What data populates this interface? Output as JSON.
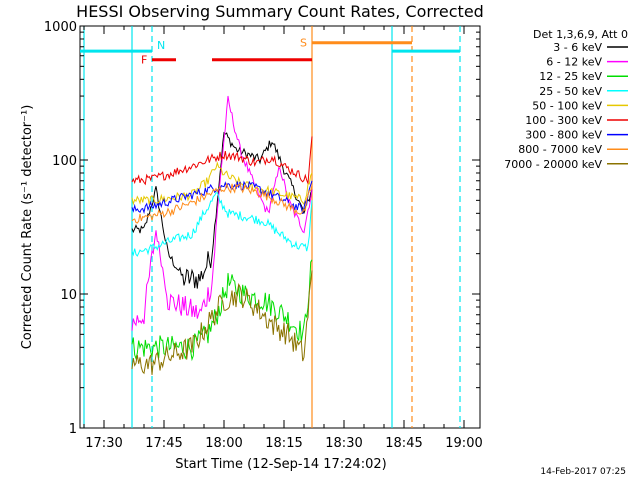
{
  "title": "HESSI Observing Summary Count Rates, Corrected",
  "ylabel": "Corrected Count Rate (s⁻¹ detector⁻¹)",
  "xlabel": "Start Time (12-Sep-14 17:24:02)",
  "timestamp": "14-Feb-2017 07:25",
  "legend_header": "Det 1,3,6,9, Att 0",
  "legend": [
    {
      "label": "3 - 6 keV",
      "color": "#000000"
    },
    {
      "label": "6 - 12 keV",
      "color": "#ff00ff"
    },
    {
      "label": "12 - 25 keV",
      "color": "#00dd00"
    },
    {
      "label": "25 - 50 keV",
      "color": "#00ffff"
    },
    {
      "label": "50 - 100 keV",
      "color": "#e6c800"
    },
    {
      "label": "100 - 300 keV",
      "color": "#ee0000"
    },
    {
      "label": "300 - 800 keV",
      "color": "#0000ff"
    },
    {
      "label": "800 - 7000 keV",
      "color": "#ff8c1a"
    },
    {
      "label": "7000 - 20000 keV",
      "color": "#8b7300"
    }
  ],
  "chart_data": {
    "type": "line",
    "yscale": "log",
    "ylim": [
      1,
      1000
    ],
    "xlim": [
      "17:24",
      "19:04"
    ],
    "x_ticks": [
      "17:30",
      "17:45",
      "18:00",
      "18:15",
      "18:30",
      "18:45",
      "19:00"
    ],
    "y_ticks": [
      "1",
      "10",
      "100",
      "1000"
    ],
    "series": [
      {
        "label_ref": 0,
        "color": "#000000",
        "x": [
          "17:37",
          "17:40",
          "17:43",
          "17:46",
          "17:50",
          "17:54",
          "17:57",
          "18:00",
          "18:03",
          "18:06",
          "18:09",
          "18:12",
          "18:15",
          "18:18",
          "18:20",
          "18:22"
        ],
        "y": [
          30,
          30,
          60,
          20,
          13,
          13,
          20,
          160,
          120,
          110,
          100,
          140,
          85,
          55,
          40,
          60
        ]
      },
      {
        "label_ref": 1,
        "color": "#ff00ff",
        "x": [
          "17:37",
          "17:40",
          "17:43",
          "17:46",
          "17:50",
          "17:54",
          "17:57",
          "17:59",
          "18:01",
          "18:04",
          "18:08",
          "18:11",
          "18:14",
          "18:16",
          "18:18",
          "18:20",
          "18:22"
        ],
        "y": [
          6,
          7,
          30,
          9,
          8,
          7,
          12,
          70,
          280,
          120,
          60,
          40,
          90,
          50,
          38,
          30,
          60
        ]
      },
      {
        "label_ref": 2,
        "color": "#00dd00",
        "x": [
          "17:37",
          "17:42",
          "17:47",
          "17:52",
          "17:56",
          "17:59",
          "18:01",
          "18:05",
          "18:10",
          "18:15",
          "18:20",
          "18:22"
        ],
        "y": [
          4,
          4,
          4,
          4,
          5,
          8,
          12,
          10,
          9,
          7,
          5,
          18
        ]
      },
      {
        "label_ref": 3,
        "color": "#00ffff",
        "x": [
          "17:37",
          "17:42",
          "17:47",
          "17:52",
          "17:55",
          "17:58",
          "18:01",
          "18:05",
          "18:10",
          "18:14",
          "18:18",
          "18:21",
          "18:22"
        ],
        "y": [
          20,
          22,
          25,
          28,
          40,
          55,
          40,
          38,
          35,
          28,
          23,
          22,
          50
        ]
      },
      {
        "label_ref": 4,
        "color": "#e6c800",
        "x": [
          "17:37",
          "17:42",
          "17:47",
          "17:52",
          "17:56",
          "17:58",
          "18:01",
          "18:05",
          "18:10",
          "18:15",
          "18:20",
          "18:22"
        ],
        "y": [
          50,
          50,
          52,
          55,
          70,
          90,
          75,
          65,
          60,
          55,
          50,
          80
        ]
      },
      {
        "label_ref": 5,
        "color": "#ee0000",
        "x": [
          "17:37",
          "17:42",
          "17:47",
          "17:52",
          "17:56",
          "18:00",
          "18:04",
          "18:08",
          "18:12",
          "18:15",
          "18:18",
          "18:21",
          "18:22"
        ],
        "y": [
          70,
          72,
          80,
          90,
          100,
          110,
          105,
          95,
          105,
          90,
          80,
          70,
          150
        ]
      },
      {
        "label_ref": 6,
        "color": "#0000ff",
        "x": [
          "17:37",
          "17:42",
          "17:47",
          "17:52",
          "17:56",
          "18:00",
          "18:04",
          "18:08",
          "18:12",
          "18:16",
          "18:20",
          "18:22"
        ],
        "y": [
          42,
          45,
          50,
          55,
          60,
          65,
          65,
          62,
          55,
          48,
          42,
          70
        ]
      },
      {
        "label_ref": 7,
        "color": "#ff8c1a",
        "x": [
          "17:37",
          "17:42",
          "17:47",
          "17:52",
          "17:56",
          "18:00",
          "18:04",
          "18:08",
          "18:12",
          "18:16",
          "18:20",
          "18:22"
        ],
        "y": [
          36,
          38,
          42,
          48,
          55,
          62,
          62,
          58,
          52,
          45,
          40,
          65
        ]
      },
      {
        "label_ref": 8,
        "color": "#8b7300",
        "x": [
          "17:37",
          "17:42",
          "17:47",
          "17:52",
          "17:56",
          "18:00",
          "18:04",
          "18:08",
          "18:12",
          "18:16",
          "18:20",
          "18:22"
        ],
        "y": [
          3,
          3,
          3.5,
          4,
          6,
          9,
          10,
          8,
          6,
          5,
          3.5,
          15
        ]
      }
    ],
    "flags": [
      {
        "label": "N",
        "color": "#00e5ee",
        "segments": [
          [
            "17:24",
            "17:42"
          ],
          [
            "18:42",
            "18:59"
          ]
        ],
        "level": 650
      },
      {
        "label": "F",
        "color": "#ee0000",
        "segments": [
          [
            "17:42",
            "17:48"
          ],
          [
            "17:57",
            "18:22"
          ]
        ],
        "level": 560
      },
      {
        "label": "S",
        "color": "#ff8c1a",
        "segments": [
          [
            "18:22",
            "18:47"
          ]
        ],
        "level": 750
      }
    ],
    "vlines": [
      {
        "x": "17:25",
        "color": "#00e5ee",
        "style": "solid"
      },
      {
        "x": "17:37",
        "color": "#00e5ee",
        "style": "solid"
      },
      {
        "x": "17:42",
        "color": "#00e5ee",
        "style": "dashed"
      },
      {
        "x": "18:22",
        "color": "#ff8c1a",
        "style": "solid"
      },
      {
        "x": "18:42",
        "color": "#00e5ee",
        "style": "solid"
      },
      {
        "x": "18:47",
        "color": "#ff8c1a",
        "style": "dashed"
      },
      {
        "x": "18:59",
        "color": "#00e5ee",
        "style": "dashed"
      }
    ]
  }
}
